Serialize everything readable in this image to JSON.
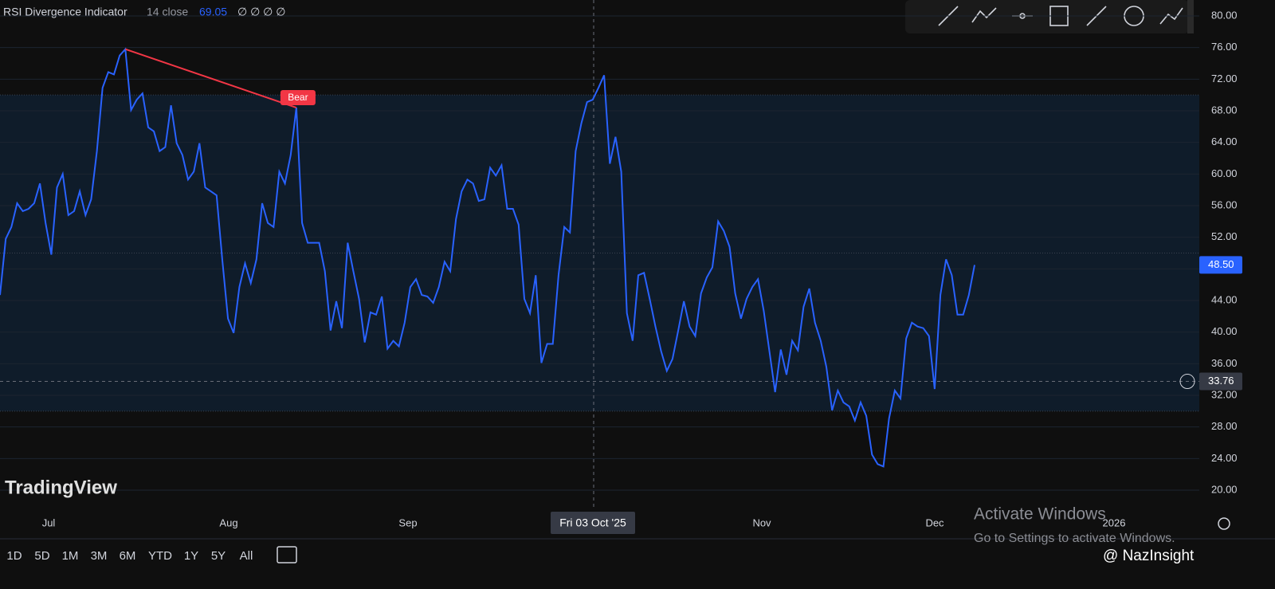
{
  "chart_data": {
    "type": "line",
    "title": "RSI Divergence Indicator",
    "subtitle": "14 close",
    "header_value": "69.05",
    "header_flags": "∅ ∅ ∅ ∅",
    "series": [
      {
        "name": "RSI",
        "color": "#2962ff",
        "values": [
          44.7,
          51.8,
          53.3,
          56.3,
          55.3,
          55.6,
          56.3,
          58.8,
          53.8,
          49.8,
          58.3,
          60.0,
          54.8,
          55.3,
          57.8,
          54.8,
          56.8,
          62.9,
          70.9,
          72.9,
          72.6,
          75.0,
          75.8,
          68.1,
          69.4,
          70.2,
          65.9,
          65.4,
          62.9,
          63.4,
          68.7,
          63.9,
          62.4,
          59.3,
          60.3,
          63.9,
          58.3,
          57.8,
          57.3,
          49.2,
          41.7,
          39.9,
          45.7,
          48.7,
          46.2,
          49.2,
          56.3,
          53.8,
          53.3,
          60.3,
          58.8,
          62.4,
          68.4,
          53.8,
          51.3,
          51.3,
          51.3,
          47.7,
          40.2,
          43.9,
          40.5,
          51.3,
          47.7,
          44.2,
          38.7,
          42.5,
          42.2,
          44.5,
          37.9,
          38.9,
          38.2,
          41.2,
          45.7,
          46.7,
          44.7,
          44.5,
          43.7,
          45.7,
          48.9,
          47.7,
          54.3,
          57.8,
          59.3,
          58.8,
          56.6,
          56.8,
          60.8,
          59.8,
          61.1,
          55.6,
          55.6,
          53.6,
          44.2,
          42.4,
          47.2,
          36.1,
          38.5,
          38.5,
          47.2,
          53.3,
          52.6,
          62.9,
          66.4,
          69.1,
          69.4,
          70.9,
          72.5,
          61.3,
          64.7,
          60.3,
          42.4,
          38.9,
          47.2,
          47.5,
          44.2,
          40.7,
          37.6,
          35.1,
          36.6,
          40.2,
          43.9,
          40.7,
          39.5,
          44.9,
          46.9,
          48.2,
          54.0,
          52.8,
          50.8,
          44.9,
          41.7,
          44.2,
          45.7,
          46.7,
          42.7,
          37.6,
          32.4,
          37.8,
          34.6,
          38.9,
          37.7,
          43.2,
          45.5,
          41.2,
          38.9,
          35.6,
          30.1,
          32.6,
          31.1,
          30.6,
          28.8,
          31.1,
          29.4,
          24.5,
          23.3,
          23.0,
          29.1,
          32.6,
          31.6,
          39.2,
          41.2,
          40.7,
          40.5,
          39.5,
          32.8,
          44.7,
          49.2,
          47.2,
          42.2,
          42.2,
          44.7,
          48.5
        ]
      }
    ],
    "ylim": [
      20,
      80
    ],
    "yticks": [
      {
        "value": 20,
        "label": "20.00"
      },
      {
        "value": 24,
        "label": "24.00"
      },
      {
        "value": 28,
        "label": "28.00"
      },
      {
        "value": 32,
        "label": "32.00"
      },
      {
        "value": 36,
        "label": "36.00"
      },
      {
        "value": 40,
        "label": "40.00"
      },
      {
        "value": 44,
        "label": "44.00"
      },
      {
        "value": 48,
        "label": "48.00"
      },
      {
        "value": 52,
        "label": "52.00"
      },
      {
        "value": 56,
        "label": "56.00"
      },
      {
        "value": 60,
        "label": "60.00"
      },
      {
        "value": 64,
        "label": "64.00"
      },
      {
        "value": 68,
        "label": "68.00"
      },
      {
        "value": 72,
        "label": "72.00"
      },
      {
        "value": 76,
        "label": "76.00"
      },
      {
        "value": 80,
        "label": "80.00"
      }
    ],
    "band": [
      30,
      70
    ],
    "midline": 50,
    "band_color": "#0f1c2a",
    "last_label": {
      "value": 48.5,
      "label": "48.50"
    },
    "crosshair_label": {
      "value": 33.76,
      "label": "33.76"
    },
    "crosshair_date": "Fri 03 Oct '25",
    "x_labels": [
      "Jul",
      "Aug",
      "Sep",
      "Nov",
      "Dec",
      "2026"
    ],
    "divergence": {
      "label": "Bear",
      "color": "#f23645"
    }
  },
  "ui": {
    "watermark": "TradingView",
    "ranges": [
      "1D",
      "5D",
      "1M",
      "3M",
      "6M",
      "YTD",
      "1Y",
      "5Y",
      "All"
    ],
    "activate_title": "Activate Windows",
    "activate_text": "Go to Settings to activate Windows.",
    "credit": "@ NazInsight"
  }
}
